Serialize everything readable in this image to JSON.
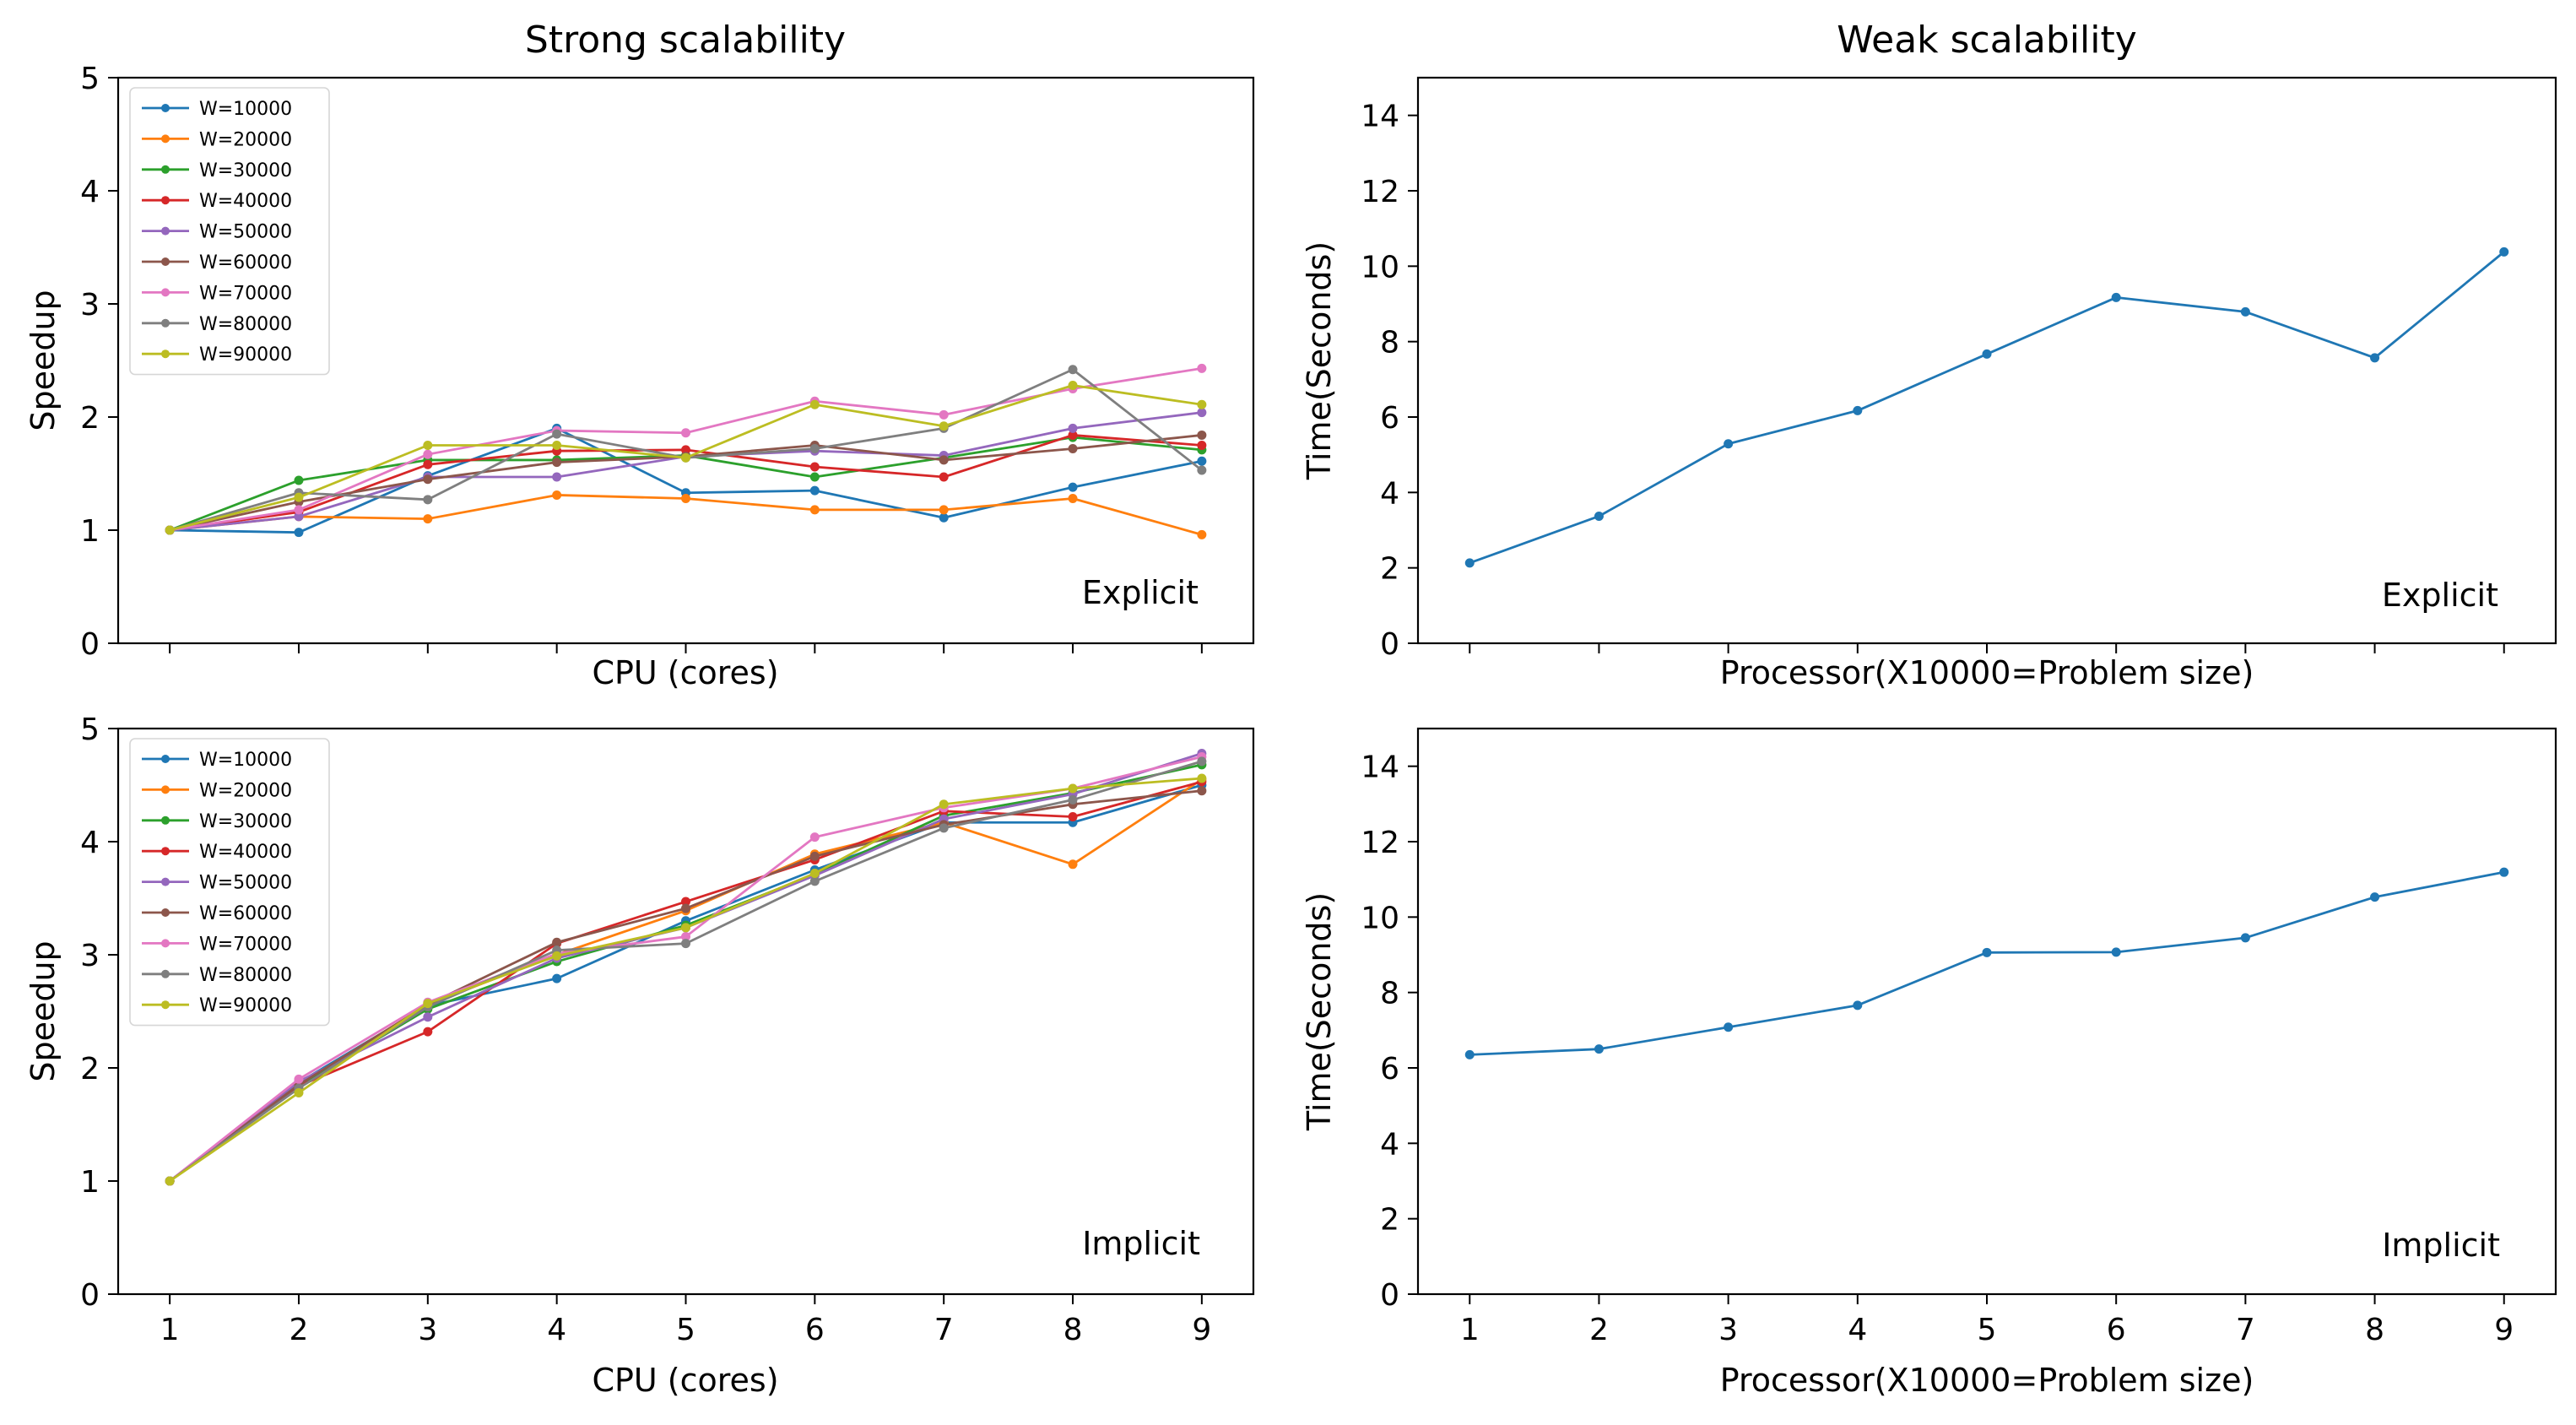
{
  "colors": {
    "W=10000": "#1f77b4",
    "W=20000": "#ff7f0e",
    "W=30000": "#2ca02c",
    "W=40000": "#d62728",
    "W=50000": "#9467bd",
    "W=60000": "#8c564b",
    "W=70000": "#e377c2",
    "W=80000": "#7f7f7f",
    "W=90000": "#bcbd22",
    "single": "#1f77b4"
  },
  "chart_data": [
    {
      "id": "strong_explicit",
      "type": "line",
      "title": "Strong scalability",
      "annotation": "Explicit",
      "xlabel": "CPU (cores)",
      "ylabel": "Speedup",
      "x": [
        1,
        2,
        3,
        4,
        5,
        6,
        7,
        8,
        9
      ],
      "xlim": [
        0.6,
        9.4
      ],
      "ylim": [
        0,
        5
      ],
      "xticks": [
        1,
        2,
        3,
        4,
        5,
        6,
        7,
        8,
        9
      ],
      "yticks": [
        0,
        1,
        2,
        3,
        4,
        5
      ],
      "show_xticklabels": false,
      "grid": false,
      "legend": "upper-left",
      "series": [
        {
          "name": "W=10000",
          "values": [
            1.0,
            0.98,
            1.48,
            1.9,
            1.33,
            1.35,
            1.11,
            1.38,
            1.61
          ]
        },
        {
          "name": "W=20000",
          "values": [
            1.0,
            1.12,
            1.1,
            1.31,
            1.28,
            1.18,
            1.18,
            1.28,
            0.96
          ]
        },
        {
          "name": "W=30000",
          "values": [
            1.0,
            1.44,
            1.62,
            1.62,
            1.66,
            1.47,
            1.64,
            1.82,
            1.71
          ]
        },
        {
          "name": "W=40000",
          "values": [
            1.0,
            1.16,
            1.58,
            1.7,
            1.71,
            1.56,
            1.47,
            1.84,
            1.75
          ]
        },
        {
          "name": "W=50000",
          "values": [
            1.0,
            1.12,
            1.47,
            1.47,
            1.65,
            1.7,
            1.66,
            1.9,
            2.04
          ]
        },
        {
          "name": "W=60000",
          "values": [
            1.0,
            1.25,
            1.45,
            1.6,
            1.65,
            1.75,
            1.62,
            1.72,
            1.84
          ]
        },
        {
          "name": "W=70000",
          "values": [
            1.0,
            1.18,
            1.67,
            1.88,
            1.86,
            2.14,
            2.02,
            2.25,
            2.43
          ]
        },
        {
          "name": "W=80000",
          "values": [
            1.0,
            1.33,
            1.27,
            1.85,
            1.64,
            1.72,
            1.9,
            2.42,
            1.53
          ]
        },
        {
          "name": "W=90000",
          "values": [
            1.0,
            1.29,
            1.75,
            1.75,
            1.64,
            2.11,
            1.92,
            2.28,
            2.11
          ]
        }
      ]
    },
    {
      "id": "weak_explicit",
      "type": "line",
      "title": "Weak scalability",
      "annotation": "Explicit",
      "xlabel": "Processor(X10000=Problem size)",
      "ylabel": "Time(Seconds)",
      "x": [
        1,
        2,
        3,
        4,
        5,
        6,
        7,
        8,
        9
      ],
      "xlim": [
        0.6,
        9.4
      ],
      "ylim": [
        0,
        15
      ],
      "xticks": [
        1,
        2,
        3,
        4,
        5,
        6,
        7,
        8,
        9
      ],
      "yticks": [
        0,
        2,
        4,
        6,
        8,
        10,
        12,
        14
      ],
      "show_xticklabels": false,
      "grid": false,
      "series": [
        {
          "values": [
            2.13,
            3.37,
            5.29,
            6.17,
            7.67,
            9.17,
            8.79,
            7.57,
            10.38
          ]
        }
      ]
    },
    {
      "id": "strong_implicit",
      "type": "line",
      "title": "",
      "annotation": "Implicit",
      "xlabel": "CPU (cores)",
      "ylabel": "Speedup",
      "x": [
        1,
        2,
        3,
        4,
        5,
        6,
        7,
        8,
        9
      ],
      "xlim": [
        0.6,
        9.4
      ],
      "ylim": [
        0,
        5
      ],
      "xticks": [
        1,
        2,
        3,
        4,
        5,
        6,
        7,
        8,
        9
      ],
      "yticks": [
        0,
        1,
        2,
        3,
        4,
        5
      ],
      "show_xticklabels": true,
      "grid": false,
      "legend": "upper-left",
      "series": [
        {
          "name": "W=10000",
          "values": [
            1.0,
            1.87,
            2.55,
            2.79,
            3.3,
            3.75,
            4.17,
            4.17,
            4.5
          ]
        },
        {
          "name": "W=20000",
          "values": [
            1.0,
            1.85,
            2.56,
            3.0,
            3.39,
            3.89,
            4.17,
            3.8,
            4.55
          ]
        },
        {
          "name": "W=30000",
          "values": [
            1.0,
            1.84,
            2.52,
            2.94,
            3.26,
            3.71,
            4.23,
            4.43,
            4.68
          ]
        },
        {
          "name": "W=40000",
          "values": [
            1.0,
            1.84,
            2.32,
            3.1,
            3.47,
            3.84,
            4.27,
            4.22,
            4.53
          ]
        },
        {
          "name": "W=50000",
          "values": [
            1.0,
            1.88,
            2.45,
            2.97,
            3.24,
            3.7,
            4.2,
            4.42,
            4.78
          ]
        },
        {
          "name": "W=60000",
          "values": [
            1.0,
            1.85,
            2.56,
            3.11,
            3.41,
            3.87,
            4.15,
            4.33,
            4.45
          ]
        },
        {
          "name": "W=70000",
          "values": [
            1.0,
            1.9,
            2.58,
            3.01,
            3.16,
            4.04,
            4.3,
            4.47,
            4.75
          ]
        },
        {
          "name": "W=80000",
          "values": [
            1.0,
            1.82,
            2.54,
            3.04,
            3.1,
            3.65,
            4.12,
            4.37,
            4.71
          ]
        },
        {
          "name": "W=90000",
          "values": [
            1.0,
            1.78,
            2.57,
            2.99,
            3.24,
            3.72,
            4.33,
            4.47,
            4.56
          ]
        }
      ]
    },
    {
      "id": "weak_implicit",
      "type": "line",
      "title": "",
      "annotation": "Implicit",
      "xlabel": "Processor(X10000=Problem size)",
      "ylabel": "Time(Seconds)",
      "x": [
        1,
        2,
        3,
        4,
        5,
        6,
        7,
        8,
        9
      ],
      "xlim": [
        0.6,
        9.4
      ],
      "ylim": [
        0,
        15
      ],
      "xticks": [
        1,
        2,
        3,
        4,
        5,
        6,
        7,
        8,
        9
      ],
      "yticks": [
        0,
        2,
        4,
        6,
        8,
        10,
        12,
        14
      ],
      "show_xticklabels": true,
      "grid": false,
      "series": [
        {
          "values": [
            6.35,
            6.5,
            7.08,
            7.66,
            9.06,
            9.07,
            9.45,
            10.53,
            11.19
          ]
        }
      ]
    }
  ]
}
